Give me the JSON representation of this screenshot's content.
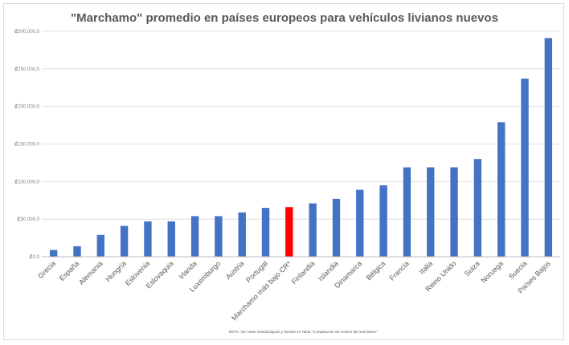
{
  "chart_data": {
    "type": "bar",
    "title": "\"Marchamo\" promedio en países europeos para vehículos livianos nuevos",
    "categories": [
      "Grecia",
      "España",
      "Alemania",
      "Hungría",
      "Eslovenia",
      "Eslovaquia",
      "Irlanda",
      "Luxemburgo",
      "Austria",
      "Portugal",
      "Marchamo más bajo CR*",
      "Finlandia",
      "Islandia",
      "Dinamarca",
      "Bélgica",
      "Francia",
      "Italia",
      "Reino Unido",
      "Suiza",
      "Noruega",
      "Suecia",
      "Países Bajos"
    ],
    "values": [
      9000,
      14000,
      29000,
      41000,
      47000,
      47000,
      54000,
      54000,
      59000,
      65000,
      66000,
      71000,
      77000,
      89000,
      95000,
      119000,
      119000,
      119000,
      130000,
      179000,
      237000,
      291000
    ],
    "highlight_category": "Marchamo más bajo CR*",
    "colors": {
      "bar": "#4472c4",
      "highlight": "#ff0000"
    },
    "ylim": [
      0,
      300000
    ],
    "yticks": [
      0,
      50000,
      100000,
      150000,
      200000,
      250000,
      300000
    ],
    "ytick_labels": [
      "₡0,0",
      "₡50.000,0",
      "₡100.000,0",
      "₡150.000,0",
      "₡200.000,0",
      "₡250.000,0",
      "₡300.000,0"
    ],
    "grid": true,
    "legend": "none",
    "note": "NOTA: Ver notas metodológicas y fuentes en Tabla \"Comparación de montos del marchamo\""
  }
}
